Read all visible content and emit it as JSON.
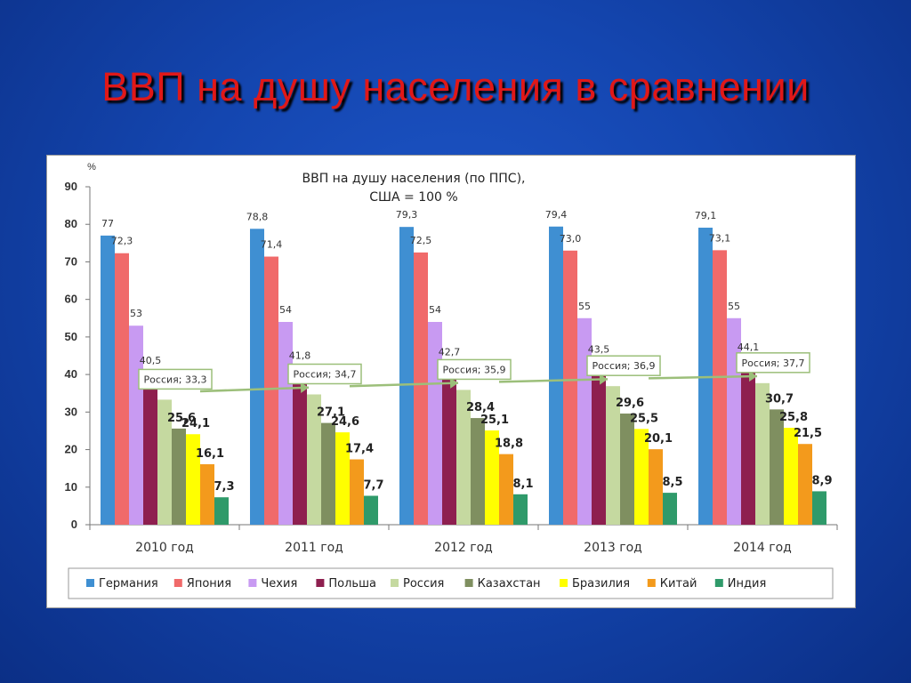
{
  "slide": {
    "title": "ВВП на душу населения в сравнении"
  },
  "colors": {
    "background": "#1446b0",
    "title": "#e01818"
  },
  "chart_data": {
    "type": "bar",
    "title_line1": "ВВП на душу населения (по ППС),",
    "title_line2": "США = 100 %",
    "y_unit": "%",
    "ylim": [
      0,
      90
    ],
    "y_ticks": [
      0,
      10,
      20,
      30,
      40,
      50,
      60,
      70,
      80,
      90
    ],
    "grid": false,
    "legend_position": "bottom",
    "categories": [
      "2010 год",
      "2011 год",
      "2012 год",
      "2013 год",
      "2014 год"
    ],
    "series": [
      {
        "name": "Германия",
        "color": "#3f8fd2",
        "values": [
          77,
          78.8,
          79.3,
          79.4,
          79.1
        ],
        "labels": [
          "77",
          "78,8",
          "79,3",
          "79,4",
          "79,1"
        ],
        "label_style": "small"
      },
      {
        "name": "Япония",
        "color": "#f06a6a",
        "values": [
          72.3,
          71.4,
          72.5,
          73.0,
          73.1
        ],
        "labels": [
          "72,3",
          "71,4",
          "72,5",
          "73,0",
          "73,1"
        ],
        "label_style": "small"
      },
      {
        "name": "Чехия",
        "color": "#c89af2",
        "values": [
          53,
          54,
          54,
          55,
          55
        ],
        "labels": [
          "53",
          "54",
          "54",
          "55",
          "55"
        ],
        "label_style": "small"
      },
      {
        "name": "Польша",
        "color": "#8e1f4f",
        "values": [
          40.5,
          41.8,
          42.7,
          43.5,
          44.1
        ],
        "labels": [
          "40,5",
          "41,8",
          "42,7",
          "43,5",
          "44,1"
        ],
        "label_style": "small"
      },
      {
        "name": "Россия",
        "color": "#c5d9a0",
        "values": [
          33.3,
          34.7,
          35.9,
          36.9,
          37.7
        ],
        "labels": [
          "Россия; 33,3",
          "Россия; 34,7",
          "Россия; 35,9",
          "Россия; 36,9",
          "Россия; 37,7"
        ],
        "label_style": "callout"
      },
      {
        "name": "Казахстан",
        "color": "#7f8f60",
        "values": [
          25.6,
          27.1,
          28.4,
          29.6,
          30.7
        ],
        "labels": [
          "25,6",
          "27,1",
          "28,4",
          "29,6",
          "30,7"
        ],
        "label_style": "bold"
      },
      {
        "name": "Бразилия",
        "color": "#ffff00",
        "values": [
          24.1,
          24.6,
          25.1,
          25.5,
          25.8
        ],
        "labels": [
          "24,1",
          "24,6",
          "25,1",
          "25,5",
          "25,8"
        ],
        "label_style": "bold"
      },
      {
        "name": "Китай",
        "color": "#f39a1c",
        "values": [
          16.1,
          17.4,
          18.8,
          20.1,
          21.5
        ],
        "labels": [
          "16,1",
          "17,4",
          "18,8",
          "20,1",
          "21,5"
        ],
        "label_style": "bold"
      },
      {
        "name": "Индия",
        "color": "#2f9a6a",
        "values": [
          7.3,
          7.7,
          8.1,
          8.5,
          8.9
        ],
        "labels": [
          "7,3",
          "7,7",
          "8,1",
          "8,5",
          "8,9"
        ],
        "label_style": "bold"
      }
    ],
    "trend_line": {
      "series": "Россия",
      "color": "#9cbf7a"
    }
  }
}
